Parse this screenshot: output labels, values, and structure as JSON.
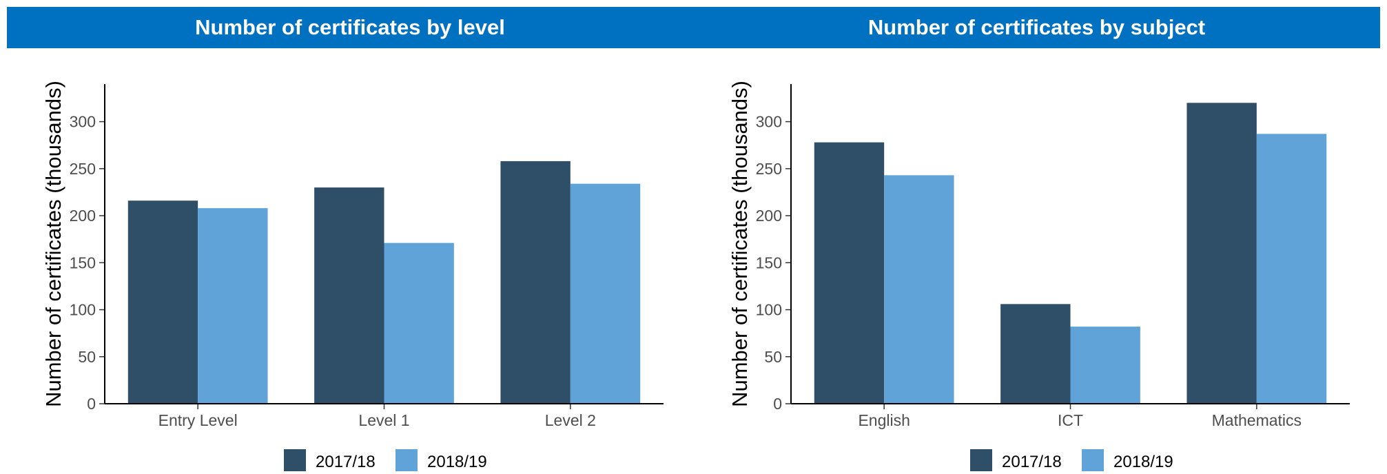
{
  "colors": {
    "header_bg": "#0070c0",
    "series_2017_18": "#2f4e67",
    "series_2018_19": "#5fa3d8"
  },
  "chart_data": [
    {
      "type": "bar",
      "title": "Number of certificates by level",
      "xlabel": "",
      "ylabel": "Number of certificates (thousands)",
      "ylim": [
        0,
        340
      ],
      "yticks": [
        0,
        50,
        100,
        150,
        200,
        250,
        300
      ],
      "categories": [
        "Entry Level",
        "Level 1",
        "Level 2"
      ],
      "series": [
        {
          "name": "2017/18",
          "values": [
            216,
            230,
            258
          ]
        },
        {
          "name": "2018/19",
          "values": [
            208,
            171,
            234
          ]
        }
      ],
      "grid": false,
      "legend": "bottom-center"
    },
    {
      "type": "bar",
      "title": "Number of certificates by subject",
      "xlabel": "",
      "ylabel": "Number of certificates (thousands)",
      "ylim": [
        0,
        340
      ],
      "yticks": [
        0,
        50,
        100,
        150,
        200,
        250,
        300
      ],
      "categories": [
        "English",
        "ICT",
        "Mathematics"
      ],
      "series": [
        {
          "name": "2017/18",
          "values": [
            278,
            106,
            320
          ]
        },
        {
          "name": "2018/19",
          "values": [
            243,
            82,
            287
          ]
        }
      ],
      "grid": false,
      "legend": "bottom-center"
    }
  ]
}
